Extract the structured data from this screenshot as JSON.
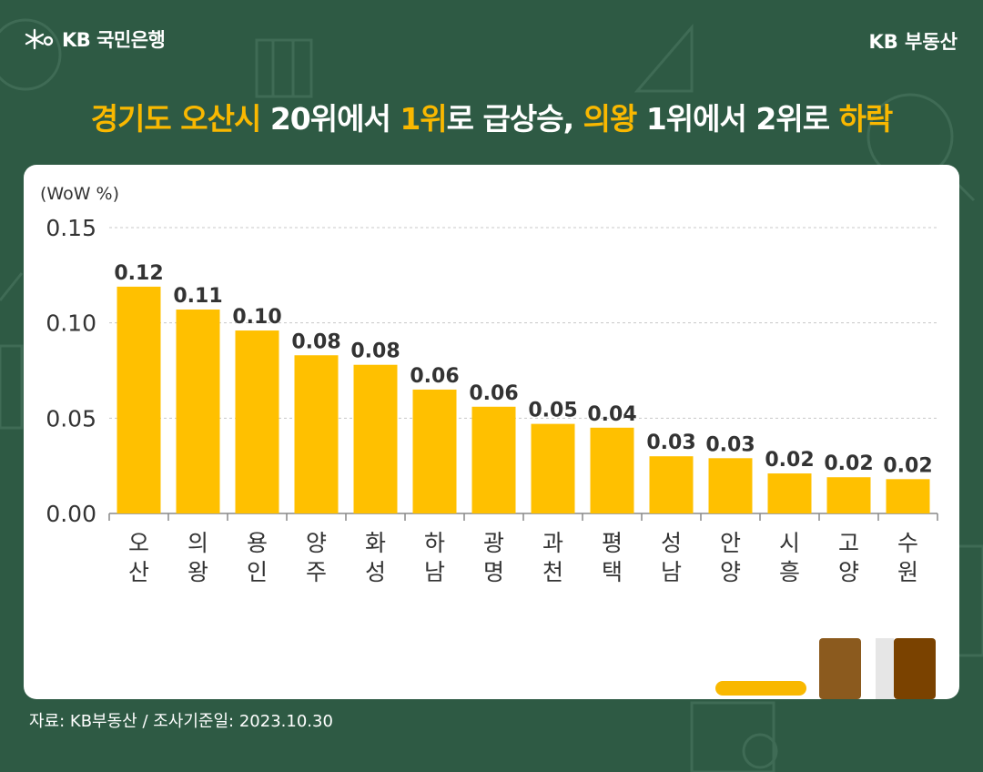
{
  "header": {
    "logo_text": "KB 국민은행",
    "brand_right": "KB 부동산"
  },
  "headline": {
    "part1": "경기도 오산시",
    "part2": " 20위에서 ",
    "part3": "1위",
    "part4": "로 급상승, ",
    "part5": "의왕",
    "part6": " 1위에서 2위로 ",
    "part7": "하락"
  },
  "footer": {
    "source": "자료: KB부동산 / 조사기준일: 2023.10.30"
  },
  "colors": {
    "background": "#2e5a44",
    "accent": "#f9b800",
    "bar": "#ffc000",
    "text_dark": "#333333"
  },
  "chart_data": {
    "type": "bar",
    "unit_label": "(WoW %)",
    "categories": [
      "오산",
      "의왕",
      "용인",
      "양주",
      "화성",
      "하남",
      "광명",
      "과천",
      "평택",
      "성남",
      "안양",
      "시흥",
      "고양",
      "수원"
    ],
    "values": [
      0.119,
      0.107,
      0.096,
      0.083,
      0.078,
      0.065,
      0.056,
      0.047,
      0.045,
      0.03,
      0.029,
      0.021,
      0.019,
      0.018
    ],
    "value_labels": [
      "0.12",
      "0.11",
      "0.10",
      "0.08",
      "0.08",
      "0.06",
      "0.06",
      "0.05",
      "0.04",
      "0.03",
      "0.03",
      "0.02",
      "0.02",
      "0.02"
    ],
    "ylim": [
      0,
      0.15
    ],
    "yticks": [
      0.0,
      0.05,
      0.1,
      0.15
    ],
    "ytick_labels": [
      "0.00",
      "0.05",
      "0.10",
      "0.15"
    ],
    "grid": true
  }
}
